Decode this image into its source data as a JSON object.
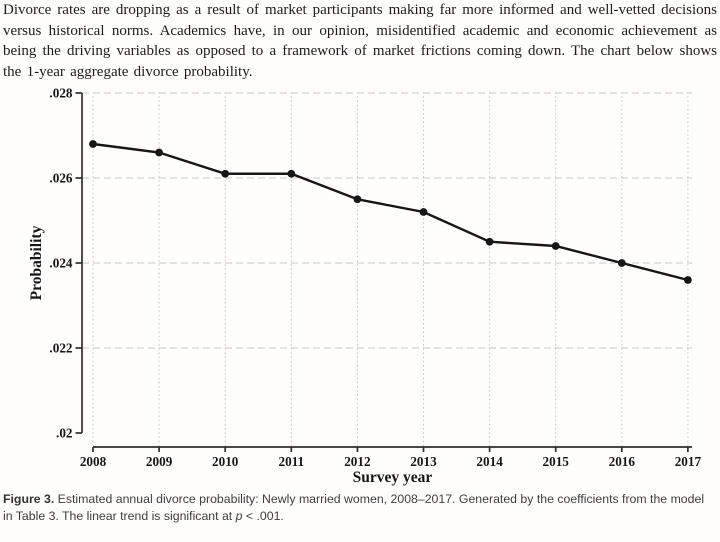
{
  "intro_paragraph": "Divorce rates are dropping as a result of market participants making far more informed and well-vetted decisions versus historical norms. Academics have, in our opinion, misidentified academic and economic achievement as being the driving variables as opposed to a framework of market frictions coming down. The chart below shows the 1-year aggregate divorce probability.",
  "chart_data": {
    "type": "line",
    "title": "",
    "xlabel": "Survey year",
    "ylabel": "Probability",
    "x": [
      2008,
      2009,
      2010,
      2011,
      2012,
      2013,
      2014,
      2015,
      2016,
      2017
    ],
    "xtick_labels": [
      "2008",
      "2009",
      "2010",
      "2011",
      "2012",
      "2013",
      "2014",
      "2015",
      "2016",
      "2017"
    ],
    "series": [
      {
        "name": "1-year aggregate divorce probability",
        "values": [
          0.0268,
          0.0266,
          0.0261,
          0.0261,
          0.0255,
          0.0252,
          0.0245,
          0.0244,
          0.024,
          0.0236
        ]
      }
    ],
    "ylim": [
      0.02,
      0.028
    ],
    "yticks": [
      0.02,
      0.022,
      0.024,
      0.026,
      0.028
    ],
    "ytick_labels": [
      ".02",
      ".022",
      ".024",
      ".026",
      ".028"
    ],
    "grid": "on",
    "legend": "none",
    "marker": "filled-circle",
    "line_color": "#161616",
    "grid_color": "#c7c7c7",
    "axis_color": "#2e2e2e",
    "text_color": "#151515"
  },
  "figure_caption": {
    "label": "Figure 3.",
    "before_p": " Estimated annual divorce probability: Newly married women, 2008–2017. Generated by the coefficients from the model in Table 3. The linear trend is significant at ",
    "p_var": "p",
    "after_p": " < .001."
  }
}
